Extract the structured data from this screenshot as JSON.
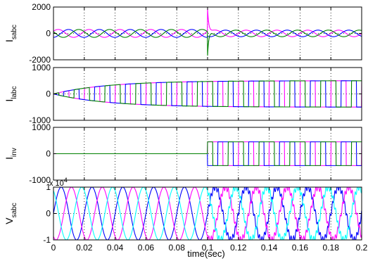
{
  "colors": {
    "phase_a": "#ff00ff",
    "phase_b": "#0000ff",
    "phase_c": "#008000",
    "phase_v3": "#00ffff",
    "grid": "#000000",
    "axes": "#000000",
    "background": "#ffffff"
  },
  "xaxis": {
    "label": "time(sec)",
    "ticks": [
      "0",
      "0.02",
      "0.04",
      "0.06",
      "0.08",
      "0.1",
      "0.12",
      "0.14",
      "0.16",
      "0.18",
      "0.2"
    ]
  },
  "chart_data": [
    {
      "type": "line",
      "ylabel_main": "I",
      "ylabel_sub": "sabc",
      "ylim": [
        -2000,
        2000
      ],
      "yticks": [
        "2000",
        "0",
        "-2000"
      ],
      "xlim": [
        0,
        0.2
      ],
      "grid": true,
      "description_data": {
        "pre_switch_amplitude": 300,
        "switch_time": 0.1,
        "transient_peak": 1900,
        "transient_trough": -1900,
        "post_switch_amplitude": 250,
        "frequency_hz": 50
      },
      "series": [
        {
          "values_note": "phase a",
          "color_key": "phase_a"
        },
        {
          "values_note": "phase b",
          "color_key": "phase_b"
        },
        {
          "values_note": "phase c",
          "color_key": "phase_c"
        }
      ]
    },
    {
      "type": "line",
      "ylabel_main": "I",
      "ylabel_sub": "labc",
      "ylim": [
        -1000,
        1000
      ],
      "yticks": [
        "1000",
        "0",
        "-1000"
      ],
      "xlim": [
        0,
        0.2
      ],
      "grid": true,
      "description_data": {
        "square_wave_amplitude_final": 500,
        "ramp_time_constant": 0.035,
        "frequency_hz": 50
      }
    },
    {
      "type": "line",
      "ylabel_main": "I",
      "ylabel_sub": "inv",
      "ylim": [
        -1000,
        1000
      ],
      "yticks": [
        "1000",
        "0",
        "-1000"
      ],
      "xlim": [
        0,
        0.2
      ],
      "grid": true,
      "description_data": {
        "switch_time": 0.1,
        "square_wave_amplitude": 500,
        "frequency_hz": 50,
        "before_switch_value": 0
      }
    },
    {
      "type": "line",
      "ylabel_main": "V",
      "ylabel_sub": "sabc",
      "ylim": [
        -1,
        1
      ],
      "yticks": [
        "1",
        "0",
        "-1"
      ],
      "exponent_label": "x 10",
      "exponent_power": "4",
      "xlim": [
        0,
        0.2
      ],
      "grid": true,
      "description_data": {
        "amplitude": 1,
        "frequency_hz": 50,
        "ripple_after_switch": 0.12,
        "switch_time": 0.1
      }
    }
  ]
}
